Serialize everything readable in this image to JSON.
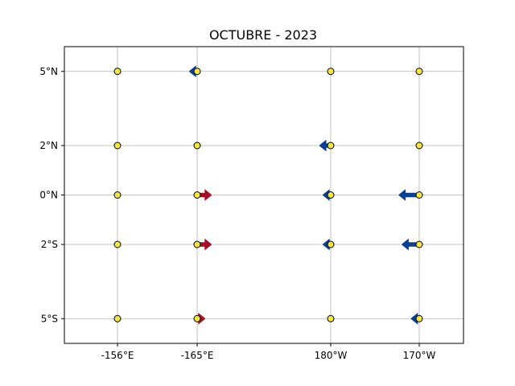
{
  "chart_data": {
    "type": "scatter",
    "title": "OCTUBRE - 2023",
    "xlabel": "",
    "ylabel": "",
    "grid": true,
    "xlim": [
      -150,
      -162
    ],
    "ylim": [
      -6,
      6
    ],
    "x_ticks": [
      {
        "value": -156,
        "label": "-156°E"
      },
      {
        "value": -165,
        "label": "-165°E"
      },
      {
        "value": 180,
        "label": "180°W"
      },
      {
        "value": 170,
        "label": "170°W"
      }
    ],
    "y_ticks": [
      {
        "value": 5,
        "label": "5°N"
      },
      {
        "value": 2,
        "label": "2°N"
      },
      {
        "value": 0,
        "label": "0°N"
      },
      {
        "value": -2,
        "label": "2°S"
      },
      {
        "value": -5,
        "label": "5°S"
      }
    ],
    "colors": {
      "buoy_fill": "#f5e642",
      "eastward_arrow": "#a50f26",
      "westward_arrow": "#0b3f94",
      "grid": "#b0b0b0"
    },
    "buoys": [
      {
        "lon": "-156°E",
        "lat": 5
      },
      {
        "lon": "-156°E",
        "lat": 2
      },
      {
        "lon": "-156°E",
        "lat": 0
      },
      {
        "lon": "-156°E",
        "lat": -2
      },
      {
        "lon": "-156°E",
        "lat": -5
      },
      {
        "lon": "-165°E",
        "lat": 5
      },
      {
        "lon": "-165°E",
        "lat": 2
      },
      {
        "lon": "-165°E",
        "lat": 0
      },
      {
        "lon": "-165°E",
        "lat": -2
      },
      {
        "lon": "-165°E",
        "lat": -5
      },
      {
        "lon": "180°W",
        "lat": 5
      },
      {
        "lon": "180°W",
        "lat": 2
      },
      {
        "lon": "180°W",
        "lat": 0
      },
      {
        "lon": "180°W",
        "lat": -2
      },
      {
        "lon": "180°W",
        "lat": -5
      },
      {
        "lon": "170°W",
        "lat": 5
      },
      {
        "lon": "170°W",
        "lat": 2
      },
      {
        "lon": "170°W",
        "lat": 0
      },
      {
        "lon": "170°W",
        "lat": -2
      },
      {
        "lon": "170°W",
        "lat": -5
      }
    ],
    "arrows": [
      {
        "lon": "-165°E",
        "lat": 5,
        "direction": "west",
        "magnitude": 0.4
      },
      {
        "lon": "-165°E",
        "lat": 0,
        "direction": "east",
        "magnitude": 1.0
      },
      {
        "lon": "-165°E",
        "lat": -2,
        "direction": "east",
        "magnitude": 1.0
      },
      {
        "lon": "-165°E",
        "lat": -5,
        "direction": "east",
        "magnitude": 0.4
      },
      {
        "lon": "180°W",
        "lat": 2,
        "direction": "west",
        "magnitude": 0.8
      },
      {
        "lon": "180°W",
        "lat": 0,
        "direction": "west",
        "magnitude": 0.55
      },
      {
        "lon": "180°W",
        "lat": -2,
        "direction": "west",
        "magnitude": 0.5
      },
      {
        "lon": "170°W",
        "lat": 0,
        "direction": "west",
        "magnitude": 1.4
      },
      {
        "lon": "170°W",
        "lat": -2,
        "direction": "west",
        "magnitude": 1.2
      },
      {
        "lon": "170°W",
        "lat": -5,
        "direction": "west",
        "magnitude": 0.6
      }
    ]
  }
}
